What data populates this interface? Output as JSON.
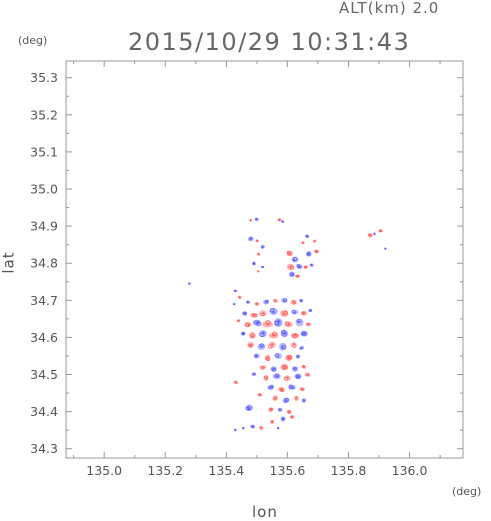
{
  "header": {
    "altitude_label": "ALT(km) 2.0",
    "timestamp": "2015/10/29 10:31:43"
  },
  "axes": {
    "x_label": "lon",
    "y_label": "lat",
    "x_unit": "(deg)",
    "y_unit": "(deg)",
    "x_range": [
      134.875,
      136.175
    ],
    "y_range": [
      34.275,
      35.345
    ],
    "x_ticks": [
      135.0,
      135.2,
      135.4,
      135.6,
      135.8,
      136.0
    ],
    "x_tick_labels": [
      "135.0",
      "135.2",
      "135.4",
      "135.6",
      "135.8",
      "136.0"
    ],
    "y_ticks": [
      34.3,
      34.4,
      34.5,
      34.6,
      34.7,
      34.8,
      34.9,
      35.0,
      35.1,
      35.2,
      35.3
    ],
    "y_tick_labels": [
      "34.3",
      "34.4",
      "34.5",
      "34.6",
      "34.7",
      "34.8",
      "34.9",
      "35.0",
      "35.1",
      "35.2",
      "35.3"
    ]
  },
  "colors": {
    "positive": "#ff5555",
    "negative": "#5555ff",
    "frame": "#999999"
  },
  "echo_blobs": [
    {
      "lon": 135.5,
      "lat": 34.918,
      "r": 0.006,
      "sign": -1
    },
    {
      "lon": 135.48,
      "lat": 34.916,
      "r": 0.004,
      "sign": 1
    },
    {
      "lon": 135.575,
      "lat": 34.917,
      "r": 0.006,
      "sign": 1
    },
    {
      "lon": 135.585,
      "lat": 34.912,
      "r": 0.004,
      "sign": -1
    },
    {
      "lon": 135.665,
      "lat": 34.872,
      "r": 0.006,
      "sign": -1
    },
    {
      "lon": 135.69,
      "lat": 34.86,
      "r": 0.005,
      "sign": 1
    },
    {
      "lon": 135.65,
      "lat": 34.855,
      "r": 0.005,
      "sign": 1
    },
    {
      "lon": 135.872,
      "lat": 34.875,
      "r": 0.007,
      "sign": 1
    },
    {
      "lon": 135.885,
      "lat": 34.88,
      "r": 0.004,
      "sign": -1
    },
    {
      "lon": 135.905,
      "lat": 34.887,
      "r": 0.006,
      "sign": 1
    },
    {
      "lon": 135.92,
      "lat": 34.84,
      "r": 0.003,
      "sign": -1
    },
    {
      "lon": 135.48,
      "lat": 34.865,
      "r": 0.007,
      "sign": -1
    },
    {
      "lon": 135.5,
      "lat": 34.86,
      "r": 0.005,
      "sign": 1
    },
    {
      "lon": 135.52,
      "lat": 34.845,
      "r": 0.006,
      "sign": -1
    },
    {
      "lon": 135.505,
      "lat": 34.825,
      "r": 0.005,
      "sign": 1
    },
    {
      "lon": 135.49,
      "lat": 34.8,
      "r": 0.006,
      "sign": -1
    },
    {
      "lon": 135.52,
      "lat": 34.79,
      "r": 0.005,
      "sign": -1
    },
    {
      "lon": 135.505,
      "lat": 34.778,
      "r": 0.004,
      "sign": 1
    },
    {
      "lon": 135.608,
      "lat": 34.826,
      "r": 0.01,
      "sign": 1
    },
    {
      "lon": 135.625,
      "lat": 34.81,
      "r": 0.012,
      "sign": -1
    },
    {
      "lon": 135.61,
      "lat": 34.79,
      "r": 0.011,
      "sign": 1
    },
    {
      "lon": 135.64,
      "lat": 34.79,
      "r": 0.009,
      "sign": -1
    },
    {
      "lon": 135.615,
      "lat": 34.77,
      "r": 0.01,
      "sign": -1
    },
    {
      "lon": 135.633,
      "lat": 34.765,
      "r": 0.007,
      "sign": 1
    },
    {
      "lon": 135.67,
      "lat": 34.825,
      "r": 0.008,
      "sign": -1
    },
    {
      "lon": 135.695,
      "lat": 34.832,
      "r": 0.006,
      "sign": 1
    },
    {
      "lon": 135.66,
      "lat": 34.79,
      "r": 0.006,
      "sign": 1
    },
    {
      "lon": 135.68,
      "lat": 34.795,
      "r": 0.005,
      "sign": -1
    },
    {
      "lon": 135.43,
      "lat": 34.725,
      "r": 0.005,
      "sign": -1
    },
    {
      "lon": 135.445,
      "lat": 34.708,
      "r": 0.005,
      "sign": 1
    },
    {
      "lon": 135.425,
      "lat": 34.69,
      "r": 0.004,
      "sign": -1
    },
    {
      "lon": 135.47,
      "lat": 34.695,
      "r": 0.006,
      "sign": -1
    },
    {
      "lon": 135.5,
      "lat": 34.69,
      "r": 0.007,
      "sign": 1
    },
    {
      "lon": 135.53,
      "lat": 34.695,
      "r": 0.008,
      "sign": -1
    },
    {
      "lon": 135.56,
      "lat": 34.7,
      "r": 0.008,
      "sign": 1
    },
    {
      "lon": 135.59,
      "lat": 34.7,
      "r": 0.01,
      "sign": -1
    },
    {
      "lon": 135.62,
      "lat": 34.695,
      "r": 0.008,
      "sign": 1
    },
    {
      "lon": 135.645,
      "lat": 34.7,
      "r": 0.006,
      "sign": -1
    },
    {
      "lon": 135.46,
      "lat": 34.665,
      "r": 0.008,
      "sign": -1
    },
    {
      "lon": 135.49,
      "lat": 34.66,
      "r": 0.01,
      "sign": 1
    },
    {
      "lon": 135.52,
      "lat": 34.665,
      "r": 0.011,
      "sign": 1
    },
    {
      "lon": 135.555,
      "lat": 34.67,
      "r": 0.012,
      "sign": -1
    },
    {
      "lon": 135.59,
      "lat": 34.665,
      "r": 0.011,
      "sign": 1
    },
    {
      "lon": 135.625,
      "lat": 34.668,
      "r": 0.01,
      "sign": -1
    },
    {
      "lon": 135.655,
      "lat": 34.665,
      "r": 0.008,
      "sign": 1
    },
    {
      "lon": 135.675,
      "lat": 34.672,
      "r": 0.006,
      "sign": -1
    },
    {
      "lon": 135.44,
      "lat": 34.645,
      "r": 0.006,
      "sign": 1
    },
    {
      "lon": 135.47,
      "lat": 34.635,
      "r": 0.012,
      "sign": 1
    },
    {
      "lon": 135.5,
      "lat": 34.64,
      "r": 0.013,
      "sign": -1
    },
    {
      "lon": 135.535,
      "lat": 34.635,
      "r": 0.014,
      "sign": 1
    },
    {
      "lon": 135.57,
      "lat": 34.64,
      "r": 0.013,
      "sign": -1
    },
    {
      "lon": 135.605,
      "lat": 34.635,
      "r": 0.013,
      "sign": 1
    },
    {
      "lon": 135.64,
      "lat": 34.64,
      "r": 0.012,
      "sign": -1
    },
    {
      "lon": 135.67,
      "lat": 34.635,
      "r": 0.008,
      "sign": 1
    },
    {
      "lon": 135.455,
      "lat": 34.61,
      "r": 0.007,
      "sign": -1
    },
    {
      "lon": 135.485,
      "lat": 34.605,
      "r": 0.011,
      "sign": 1
    },
    {
      "lon": 135.52,
      "lat": 34.61,
      "r": 0.013,
      "sign": -1
    },
    {
      "lon": 135.555,
      "lat": 34.605,
      "r": 0.013,
      "sign": 1
    },
    {
      "lon": 135.59,
      "lat": 34.61,
      "r": 0.013,
      "sign": -1
    },
    {
      "lon": 135.625,
      "lat": 34.605,
      "r": 0.012,
      "sign": 1
    },
    {
      "lon": 135.655,
      "lat": 34.61,
      "r": 0.009,
      "sign": -1
    },
    {
      "lon": 135.48,
      "lat": 34.58,
      "r": 0.009,
      "sign": 1
    },
    {
      "lon": 135.515,
      "lat": 34.575,
      "r": 0.011,
      "sign": -1
    },
    {
      "lon": 135.55,
      "lat": 34.58,
      "r": 0.012,
      "sign": 1
    },
    {
      "lon": 135.585,
      "lat": 34.575,
      "r": 0.012,
      "sign": -1
    },
    {
      "lon": 135.62,
      "lat": 34.58,
      "r": 0.011,
      "sign": 1
    },
    {
      "lon": 135.645,
      "lat": 34.57,
      "r": 0.007,
      "sign": -1
    },
    {
      "lon": 135.5,
      "lat": 34.55,
      "r": 0.009,
      "sign": -1
    },
    {
      "lon": 135.535,
      "lat": 34.545,
      "r": 0.01,
      "sign": 1
    },
    {
      "lon": 135.57,
      "lat": 34.55,
      "r": 0.011,
      "sign": -1
    },
    {
      "lon": 135.605,
      "lat": 34.545,
      "r": 0.01,
      "sign": 1
    },
    {
      "lon": 135.635,
      "lat": 34.548,
      "r": 0.007,
      "sign": -1
    },
    {
      "lon": 135.52,
      "lat": 34.52,
      "r": 0.009,
      "sign": 1
    },
    {
      "lon": 135.555,
      "lat": 34.515,
      "r": 0.01,
      "sign": -1
    },
    {
      "lon": 135.59,
      "lat": 34.52,
      "r": 0.01,
      "sign": 1
    },
    {
      "lon": 135.625,
      "lat": 34.515,
      "r": 0.009,
      "sign": -1
    },
    {
      "lon": 135.655,
      "lat": 34.52,
      "r": 0.007,
      "sign": 1
    },
    {
      "lon": 135.49,
      "lat": 34.5,
      "r": 0.007,
      "sign": -1
    },
    {
      "lon": 135.53,
      "lat": 34.49,
      "r": 0.009,
      "sign": 1
    },
    {
      "lon": 135.565,
      "lat": 34.495,
      "r": 0.01,
      "sign": -1
    },
    {
      "lon": 135.6,
      "lat": 34.49,
      "r": 0.011,
      "sign": 1
    },
    {
      "lon": 135.635,
      "lat": 34.495,
      "r": 0.009,
      "sign": -1
    },
    {
      "lon": 135.665,
      "lat": 34.5,
      "r": 0.007,
      "sign": 1
    },
    {
      "lon": 135.43,
      "lat": 34.48,
      "r": 0.006,
      "sign": 1
    },
    {
      "lon": 135.545,
      "lat": 34.465,
      "r": 0.009,
      "sign": -1
    },
    {
      "lon": 135.58,
      "lat": 34.46,
      "r": 0.01,
      "sign": 1
    },
    {
      "lon": 135.615,
      "lat": 34.465,
      "r": 0.01,
      "sign": -1
    },
    {
      "lon": 135.65,
      "lat": 34.46,
      "r": 0.008,
      "sign": 1
    },
    {
      "lon": 135.51,
      "lat": 34.445,
      "r": 0.006,
      "sign": 1
    },
    {
      "lon": 135.56,
      "lat": 34.435,
      "r": 0.009,
      "sign": 1
    },
    {
      "lon": 135.595,
      "lat": 34.43,
      "r": 0.01,
      "sign": -1
    },
    {
      "lon": 135.63,
      "lat": 34.435,
      "r": 0.008,
      "sign": 1
    },
    {
      "lon": 135.655,
      "lat": 34.43,
      "r": 0.007,
      "sign": -1
    },
    {
      "lon": 135.475,
      "lat": 34.41,
      "r": 0.01,
      "sign": -1
    },
    {
      "lon": 135.545,
      "lat": 34.405,
      "r": 0.007,
      "sign": 1
    },
    {
      "lon": 135.575,
      "lat": 34.405,
      "r": 0.007,
      "sign": -1
    },
    {
      "lon": 135.605,
      "lat": 34.4,
      "r": 0.008,
      "sign": 1
    },
    {
      "lon": 135.585,
      "lat": 34.38,
      "r": 0.008,
      "sign": -1
    },
    {
      "lon": 135.615,
      "lat": 34.385,
      "r": 0.006,
      "sign": 1
    },
    {
      "lon": 135.55,
      "lat": 34.372,
      "r": 0.006,
      "sign": 1
    },
    {
      "lon": 135.485,
      "lat": 34.36,
      "r": 0.007,
      "sign": -1
    },
    {
      "lon": 135.515,
      "lat": 34.355,
      "r": 0.006,
      "sign": 1
    },
    {
      "lon": 135.455,
      "lat": 34.355,
      "r": 0.004,
      "sign": -1
    },
    {
      "lon": 135.43,
      "lat": 34.35,
      "r": 0.003,
      "sign": -1
    },
    {
      "lon": 135.57,
      "lat": 34.355,
      "r": 0.004,
      "sign": -1
    },
    {
      "lon": 135.28,
      "lat": 34.745,
      "r": 0.002,
      "sign": -1
    }
  ]
}
